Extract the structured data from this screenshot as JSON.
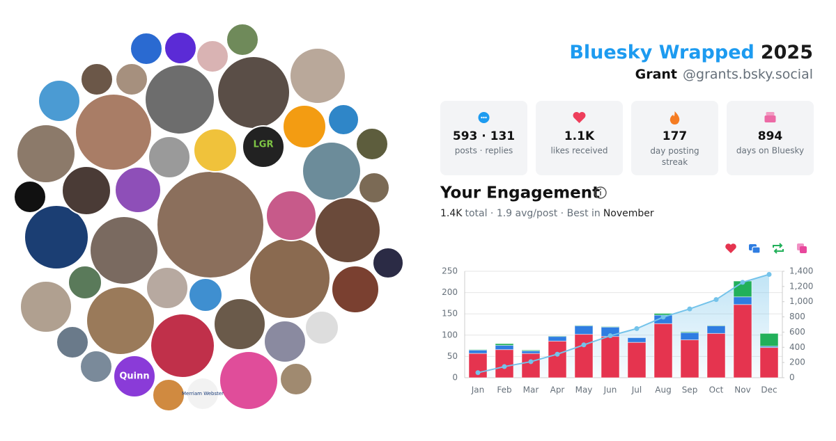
{
  "header": {
    "title": "Bluesky Wrapped",
    "year": "2025",
    "name": "Grant",
    "handle": "@grants.bsky.social"
  },
  "stats": [
    {
      "value": "593 · 131",
      "label": "posts · replies"
    },
    {
      "value": "1.1K",
      "label": "likes received"
    },
    {
      "value": "177",
      "label": "day posting streak"
    },
    {
      "value": "894",
      "label": "days on Bluesky"
    }
  ],
  "engagement": {
    "title": "Your Engagement",
    "total": "1.4K",
    "summary": "total · 1.9 avg/post · Best in",
    "best": "November"
  },
  "avatar_labels": [
    "LGR",
    "Quinn",
    "Merriam Webster"
  ],
  "chart_data": {
    "type": "bar",
    "stacked": true,
    "categories": [
      "Jan",
      "Feb",
      "Mar",
      "Apr",
      "May",
      "Jun",
      "Jul",
      "Aug",
      "Sep",
      "Oct",
      "Nov",
      "Dec"
    ],
    "series": [
      {
        "color": "#e5344f",
        "values": [
          57,
          66,
          57,
          86,
          102,
          97,
          83,
          127,
          89,
          104,
          172,
          71
        ]
      },
      {
        "color": "#2f7de1",
        "values": [
          8,
          10,
          6,
          11,
          20,
          22,
          11,
          20,
          17,
          18,
          18,
          3
        ]
      },
      {
        "color": "#22b05a",
        "values": [
          1,
          4,
          2,
          1,
          1,
          1,
          0,
          4,
          2,
          1,
          37,
          30
        ]
      },
      {
        "color": "#e8479c",
        "values": [
          0,
          0,
          0,
          0,
          0,
          0,
          0,
          0,
          0,
          0,
          0,
          0
        ]
      },
      {
        "type": "line",
        "axis": "y2",
        "color": "#74c3ea",
        "values": [
          66,
          146,
          211,
          309,
          432,
          552,
          646,
          797,
          905,
          1028,
          1255,
          1359
        ]
      }
    ],
    "ylim": [
      0,
      250
    ],
    "yticks": [
      0,
      50,
      100,
      150,
      200,
      250
    ],
    "y2lim": [
      0,
      1400
    ],
    "y2ticks": [
      0,
      200,
      400,
      600,
      800,
      {
        "value": 1000,
        "label": "1,000"
      },
      {
        "value": 1200,
        "label": "1,200"
      },
      {
        "value": 1400,
        "label": "1,400"
      }
    ],
    "grid": true
  }
}
